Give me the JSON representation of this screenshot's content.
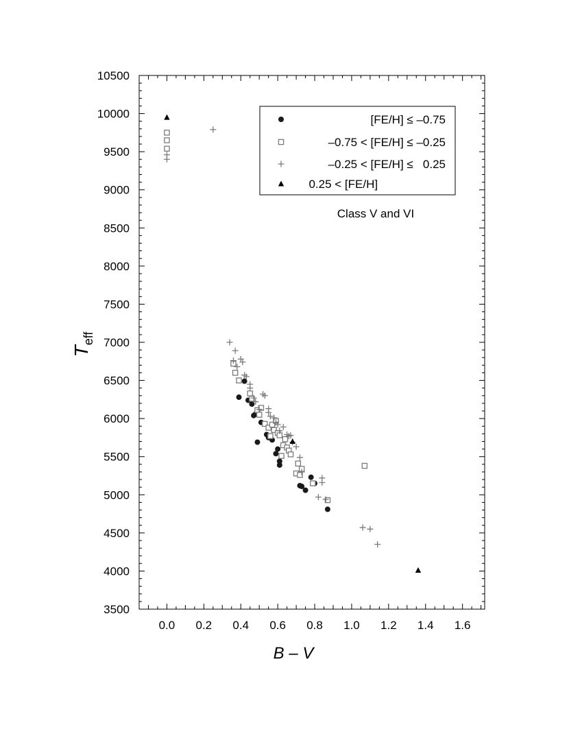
{
  "chart_data": {
    "type": "scatter",
    "xlabel": "B – V",
    "ylabel_main": "T",
    "ylabel_sub": "eff",
    "xlim": [
      -0.15,
      1.72
    ],
    "ylim": [
      3500,
      10500
    ],
    "x_ticks": [
      "0.0",
      "0.2",
      "0.4",
      "0.6",
      "0.8",
      "1.0",
      "1.2",
      "1.4",
      "1.6"
    ],
    "x_tick_values": [
      0.0,
      0.2,
      0.4,
      0.6,
      0.8,
      1.0,
      1.2,
      1.4,
      1.6
    ],
    "y_ticks": [
      "3500",
      "4000",
      "4500",
      "5000",
      "5500",
      "6000",
      "6500",
      "7000",
      "7500",
      "8000",
      "8500",
      "9000",
      "9500",
      "10000",
      "10500"
    ],
    "y_tick_values": [
      3500,
      4000,
      4500,
      5000,
      5500,
      6000,
      6500,
      7000,
      7500,
      8000,
      8500,
      9000,
      9500,
      10000,
      10500
    ],
    "annotation": "Class V and VI",
    "legend_position": "top-right",
    "series": [
      {
        "name": "[FE/H] ≤ –0.75",
        "marker": "filled-circle",
        "color": "#1a1a1a",
        "x": [
          0.39,
          0.42,
          0.44,
          0.46,
          0.47,
          0.48,
          0.49,
          0.51,
          0.53,
          0.54,
          0.55,
          0.57,
          0.59,
          0.6,
          0.61,
          0.61,
          0.72,
          0.73,
          0.75,
          0.78,
          0.8,
          0.87
        ],
        "y": [
          6280,
          6490,
          6240,
          6190,
          6040,
          6060,
          5690,
          5950,
          5930,
          5790,
          5750,
          5720,
          5540,
          5600,
          5440,
          5390,
          5120,
          5110,
          5060,
          5230,
          5150,
          4810
        ]
      },
      {
        "name": "–0.75 < [FE/H] ≤ –0.25",
        "marker": "open-square",
        "color": "#7a7a7a",
        "x": [
          0.0,
          0.0,
          0.0,
          0.36,
          0.37,
          0.39,
          0.45,
          0.46,
          0.49,
          0.5,
          0.51,
          0.53,
          0.55,
          0.56,
          0.57,
          0.58,
          0.59,
          0.6,
          0.61,
          0.62,
          0.63,
          0.64,
          0.65,
          0.66,
          0.67,
          0.7,
          0.71,
          0.72,
          0.73,
          0.79,
          0.87,
          1.07
        ],
        "y": [
          9750,
          9650,
          9540,
          6720,
          6600,
          6500,
          6330,
          6260,
          6110,
          6050,
          6140,
          5930,
          5880,
          5770,
          5920,
          5850,
          5970,
          5810,
          5780,
          5510,
          5650,
          5730,
          5620,
          5580,
          5530,
          5280,
          5410,
          5260,
          5340,
          5150,
          4930,
          5380
        ]
      },
      {
        "name": "–0.25 < [FE/H] ≤   0.25",
        "marker": "plus",
        "color": "#7a7a7a",
        "x": [
          0.0,
          0.0,
          0.25,
          0.34,
          0.36,
          0.37,
          0.38,
          0.4,
          0.41,
          0.42,
          0.43,
          0.45,
          0.45,
          0.47,
          0.48,
          0.5,
          0.52,
          0.53,
          0.55,
          0.55,
          0.56,
          0.58,
          0.59,
          0.6,
          0.61,
          0.63,
          0.65,
          0.66,
          0.67,
          0.68,
          0.7,
          0.72,
          0.73,
          0.82,
          0.84,
          0.84,
          0.86,
          1.06,
          1.1,
          1.14
        ],
        "y": [
          9460,
          9400,
          9790,
          7000,
          6760,
          6890,
          6680,
          6780,
          6740,
          6570,
          6550,
          6450,
          6400,
          6270,
          6220,
          6120,
          6320,
          6300,
          6130,
          6080,
          6030,
          6010,
          5950,
          5920,
          5840,
          5890,
          5790,
          5770,
          5780,
          5690,
          5630,
          5490,
          5300,
          4970,
          5220,
          5160,
          4940,
          4570,
          4550,
          4350
        ]
      },
      {
        "name": "  0.25 < [FE/H]",
        "marker": "filled-triangle",
        "color": "#000000",
        "x": [
          0.0,
          0.68,
          1.36
        ],
        "y": [
          9950,
          5700,
          4010
        ]
      }
    ]
  }
}
